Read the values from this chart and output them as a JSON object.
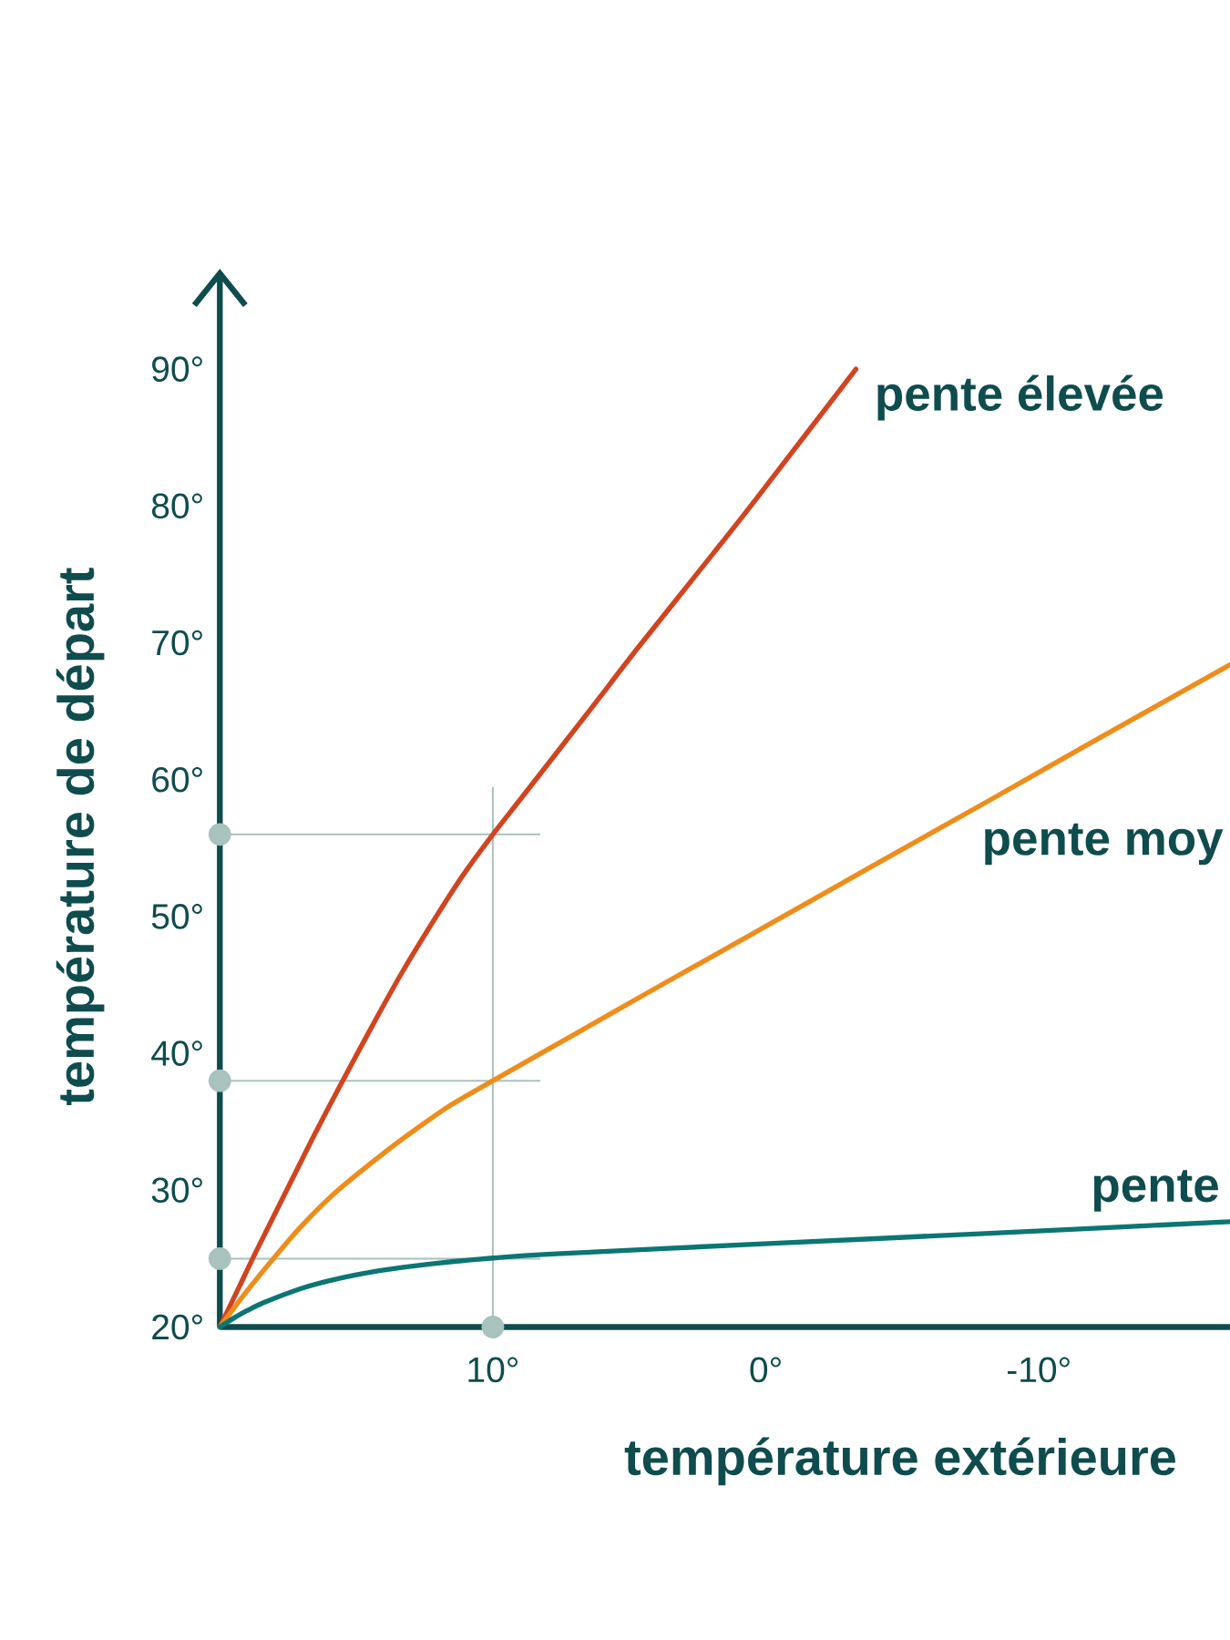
{
  "chart_data": {
    "type": "line",
    "xlabel": "température extérieure",
    "ylabel": "température de départ",
    "xlim": [
      20,
      -17
    ],
    "ylim": [
      20,
      97
    ],
    "xticks": [
      {
        "value": 10,
        "label": "10°"
      },
      {
        "value": 0,
        "label": "0°"
      },
      {
        "value": -10,
        "label": "-10°"
      }
    ],
    "yticks": [
      {
        "value": 20,
        "label": "20°"
      },
      {
        "value": 30,
        "label": "30°"
      },
      {
        "value": 40,
        "label": "40°"
      },
      {
        "value": 50,
        "label": "50°"
      },
      {
        "value": 60,
        "label": "60°"
      },
      {
        "value": 70,
        "label": "70°"
      },
      {
        "value": 80,
        "label": "80°"
      },
      {
        "value": 90,
        "label": "90°"
      }
    ],
    "line_style": "solid",
    "series": [
      {
        "name": "pente élevée",
        "color": "#d1441f",
        "x": [
          20,
          19.3,
          18.7,
          17.5,
          16.6,
          15.5,
          14.2,
          13.3,
          12.2,
          11.1,
          10,
          8.9,
          6.4,
          4.7,
          1.9,
          0.4,
          -3.3
        ],
        "values": [
          20,
          22.9,
          25.4,
          30.2,
          33.8,
          38,
          42.8,
          46,
          49.6,
          53,
          56,
          58.8,
          65.2,
          69.6,
          76.6,
          80.4,
          90
        ]
      },
      {
        "name": "pente moy",
        "color": "#ee8d1b",
        "x": [
          20,
          19,
          18,
          17,
          15.7,
          14.1,
          13,
          11.6,
          10,
          7,
          4,
          -0.1,
          -4,
          -8.2,
          -12,
          -17
        ],
        "values": [
          20,
          22.65,
          25.1,
          27.4,
          29.95,
          32.55,
          34.2,
          36.15,
          38,
          41.4,
          44.8,
          49.4,
          53.8,
          58.5,
          62.8,
          68.4
        ]
      },
      {
        "name": "pente",
        "color": "#0b7673",
        "x": [
          20,
          19.5,
          19,
          18.4,
          17,
          15.7,
          14.3,
          13,
          11.5,
          10,
          8,
          -0.1,
          -8.2,
          -17
        ],
        "values": [
          20,
          20.64,
          21.2,
          21.78,
          22.83,
          23.52,
          24.07,
          24.44,
          24.78,
          25.04,
          25.32,
          26.1,
          26.85,
          27.7
        ]
      }
    ],
    "ref_lines": [
      {
        "axis": "y",
        "value": 56,
        "color": "#a8c2be"
      },
      {
        "axis": "y",
        "value": 38,
        "color": "#a8c2be"
      },
      {
        "axis": "y",
        "value": 25,
        "color": "#a8c2be"
      },
      {
        "axis": "x",
        "value": 10,
        "color": "#a8c2be"
      }
    ]
  }
}
